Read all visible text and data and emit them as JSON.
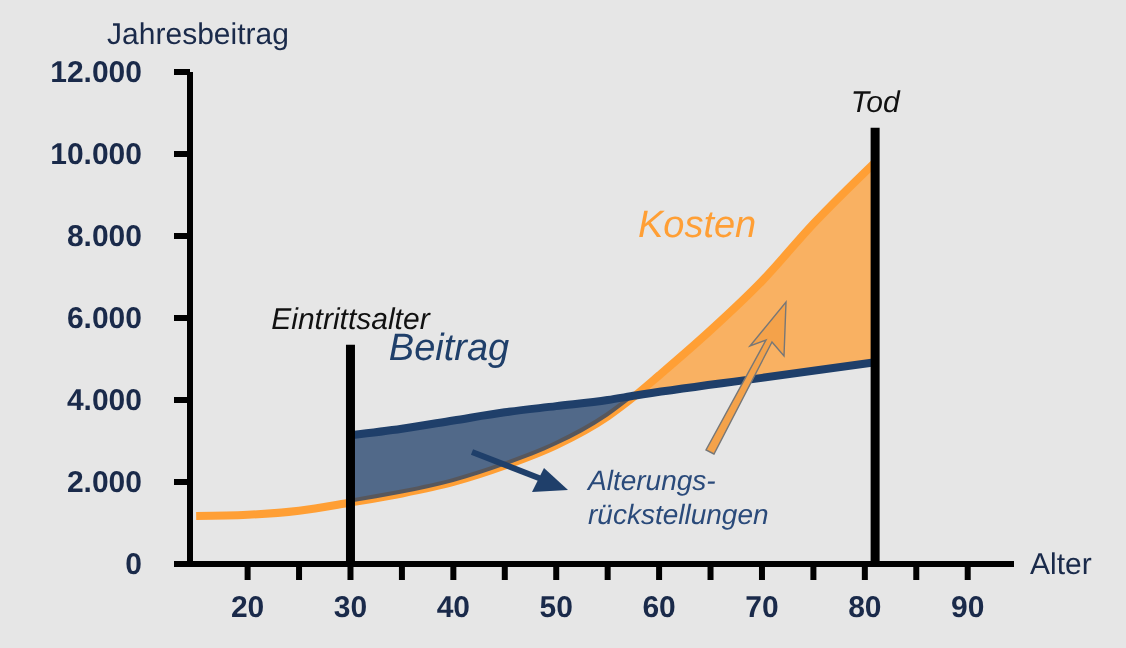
{
  "chart_data": {
    "type": "line",
    "xlabel": "Alter",
    "ylabel": "Jahresbeitrag",
    "xlim": [
      14.4,
      94.5
    ],
    "xticks": [
      20,
      {
        "value": 25,
        "label": null
      },
      30,
      {
        "value": 35,
        "label": null
      },
      40,
      {
        "value": 45,
        "label": null
      },
      50,
      {
        "value": 55,
        "label": null
      },
      60,
      {
        "value": 65,
        "label": null
      },
      70,
      {
        "value": 75,
        "label": null
      },
      80,
      {
        "value": 85,
        "label": null
      },
      90
    ],
    "ylim": [
      0,
      12000
    ],
    "yticks": [
      0,
      {
        "value": 2000,
        "label": "2.000"
      },
      {
        "value": 4000,
        "label": "4.000"
      },
      {
        "value": 6000,
        "label": "6.000"
      },
      {
        "value": 8000,
        "label": "8.000"
      },
      {
        "value": 10000,
        "label": "10.000"
      },
      {
        "value": 12000,
        "label": "12.000"
      }
    ],
    "series": [
      {
        "name": "Kosten",
        "color": "#ff9f35",
        "x": [
          15,
          20,
          25,
          30,
          35,
          40,
          45,
          50,
          55,
          57.7,
          60,
          65,
          70,
          75,
          81
        ],
        "values": [
          1170,
          1200,
          1300,
          1500,
          1720,
          2000,
          2400,
          2900,
          3600,
          4110,
          4600,
          5700,
          6900,
          8300,
          9800
        ],
        "lower": [
          null,
          null,
          null,
          null,
          null,
          null,
          null,
          null,
          null,
          4110,
          4190,
          4360,
          4540,
          4710,
          4920
        ],
        "upper": [
          null,
          null,
          null,
          null,
          null,
          null,
          null,
          null,
          null,
          4110,
          4600,
          5700,
          6900,
          8300,
          9800
        ]
      },
      {
        "name": "Beitrag",
        "color": "#1f3f6a",
        "x": [
          30,
          35,
          40,
          45,
          50,
          55,
          57.7,
          70,
          81
        ],
        "values": [
          3140,
          3300,
          3500,
          3700,
          3850,
          4000,
          4110,
          4540,
          4920
        ],
        "lower": [
          1500,
          1720,
          2000,
          2400,
          2900,
          3600,
          4110,
          null,
          null
        ],
        "upper": [
          3140,
          3300,
          3500,
          3700,
          3850,
          4000,
          4110,
          null,
          null
        ]
      },
      {
        "color": "#000000",
        "x": [
          30,
          30
        ],
        "values": [
          0,
          5350
        ]
      },
      {
        "color": "#000000",
        "x": [
          81,
          81
        ],
        "values": [
          0,
          10640
        ]
      }
    ],
    "annotations": [
      {
        "text": "Eintrittsalter",
        "x": 30,
        "y": 5350
      },
      {
        "text": "Tod",
        "x": 81,
        "y": 10640
      },
      "Alterungs-\nrückstellungen"
    ]
  }
}
